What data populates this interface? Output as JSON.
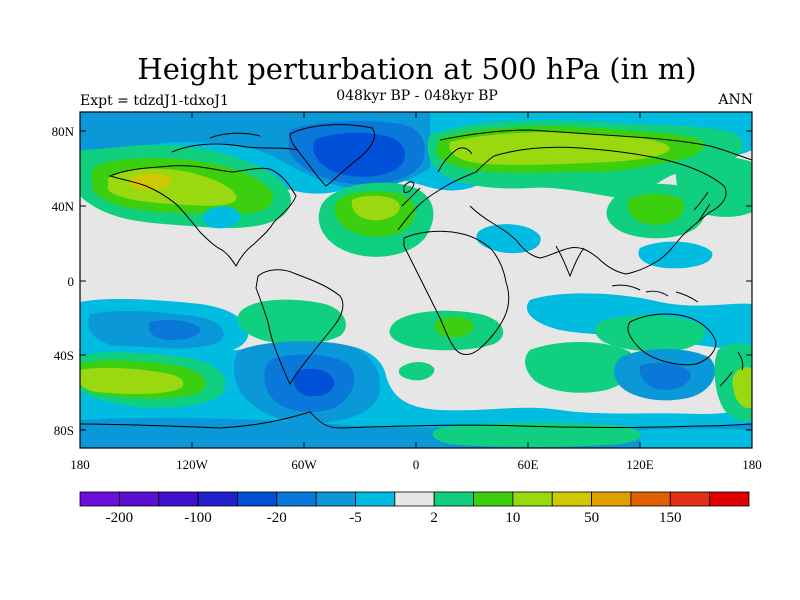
{
  "title": "Height perturbation at 500 hPa (in m)",
  "subtitle": "048kyr BP - 048kyr BP",
  "expt_label": "Expt = tdzdJ1-tdxoJ1",
  "season": "ANN",
  "lat_ticks": [
    "80N",
    "40N",
    "0",
    "40S",
    "80S"
  ],
  "lon_ticks": [
    "180",
    "120W",
    "60W",
    "0",
    "60E",
    "120E",
    "180"
  ],
  "colorbar": {
    "colors": [
      "#6a0fdc",
      "#5a0fd0",
      "#4010cc",
      "#2020cc",
      "#0050d8",
      "#0a78d8",
      "#0a98d8",
      "#00bce0",
      "#e6e6e6",
      "#10d080",
      "#3ccf10",
      "#9ad810",
      "#d0c800",
      "#e0a000",
      "#e06000",
      "#e03018",
      "#e00000"
    ],
    "labels": [
      {
        "text": "-200",
        "boundary": 1
      },
      {
        "text": "-100",
        "boundary": 3
      },
      {
        "text": "-20",
        "boundary": 5
      },
      {
        "text": "-5",
        "boundary": 7
      },
      {
        "text": "2",
        "boundary": 9
      },
      {
        "text": "10",
        "boundary": 11
      },
      {
        "text": "50",
        "boundary": 13
      },
      {
        "text": "150",
        "boundary": 15
      }
    ]
  },
  "palette": {
    "neutral": "#e6e6e6",
    "cyan": "#00bce0",
    "blue1": "#0a98d8",
    "blue2": "#0a78d8",
    "blue3": "#0050d8",
    "green1": "#10d080",
    "green2": "#3ccf10",
    "yellow": "#9ad810",
    "gold": "#d0c800"
  }
}
